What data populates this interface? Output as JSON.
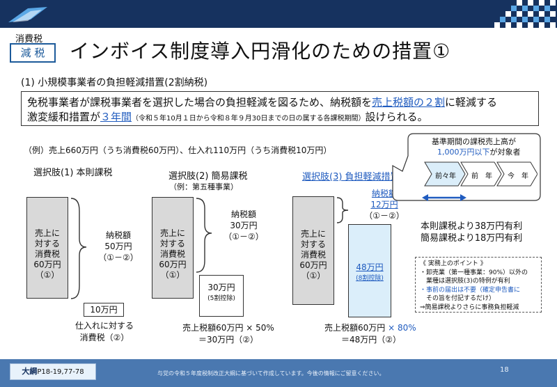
{
  "header": {
    "tag_top": "消費税",
    "tag_box": "減 税",
    "title": "インボイス制度導入円滑化のための措置①"
  },
  "section": {
    "heading": "(1) 小規模事業者の負担軽減措置(2割納税)"
  },
  "summary": {
    "line1_a": "免税事業者が課税事業者を選択した場合の負担軽減を図るため、納税額を",
    "line1_b": "売上税額の２割",
    "line1_c": "に軽減する",
    "line2_a": "激変緩和措置が",
    "line2_b": "３年間",
    "line2_c": "（令和５年10月１日から令和８年９月30日までの日の属する各課税期間）",
    "line2_d": "設けられる。"
  },
  "example": "（例）売上660万円（うち消費税60万円）、仕入れ110万円（うち消費税10万円）",
  "option1": {
    "title": "選択肢(1) 本則課税",
    "sales_block": [
      "売上に",
      "対する",
      "消費税",
      "60万円",
      "（①）"
    ],
    "tax_label": [
      "納税額",
      "50万円",
      "（①－②）"
    ],
    "purchase_box": "10万円",
    "purchase_label": [
      "仕入れに対する",
      "消費税（②）"
    ]
  },
  "option2": {
    "title": "選択肢(2) 簡易課税",
    "subtitle": "（例：第五種事業）",
    "sales_block": [
      "売上に",
      "対する",
      "消費税",
      "60万円",
      "（①）"
    ],
    "tax_label": [
      "納税額",
      "30万円",
      "（①－②）"
    ],
    "deduct_box": [
      "30万円",
      "(5割控除)"
    ],
    "calc": [
      "売上税額60万円 × 50%",
      "＝30万円（②）"
    ]
  },
  "option3": {
    "title": "選択肢(3) 負担軽減措置",
    "sales_block": [
      "売上に",
      "対する",
      "消費税",
      "60万円",
      "（①）"
    ],
    "tax_label": [
      "納税額",
      "12万円",
      "（①－②）"
    ],
    "deduct_box": [
      "48万円",
      "(8割控除)"
    ],
    "calc_a": "売上税額60万円",
    "calc_b": "× 80%",
    "calc2": "＝48万円（②）"
  },
  "callout": {
    "line1": "基準期間の課税売上高が",
    "line2_a": "1,000万円以下",
    "line2_b": "が対象者",
    "arrows": [
      "前々年",
      "前　年",
      "今　年"
    ]
  },
  "advantage": [
    "本則課税より38万円有利",
    "簡易課税より18万円有利"
  ],
  "points": {
    "title": "《 実務上のポイント 》",
    "items": [
      "・卸売業（第一種事業：90%）以外の",
      "　業種は選択肢(3)の特例が有利",
      "・事前の届出は不要（確定申告書に",
      "　その旨を付記するだけ）",
      "⇒簡易課税よりさらに事務負担軽減"
    ]
  },
  "footer": {
    "ref_a": "大綱",
    "ref_b": "P18-19,77-78",
    "note": "与党の令和５年度税制改正大綱に基づいて作成しています。今後の情報にご留意ください。",
    "page": "18"
  },
  "colors": {
    "navy": "#16325f",
    "accent_blue": "#1f5bbf",
    "gray_box": "#d9d9d9",
    "light_blue_box": "#dbeefa",
    "footer": "#4a78b0"
  }
}
